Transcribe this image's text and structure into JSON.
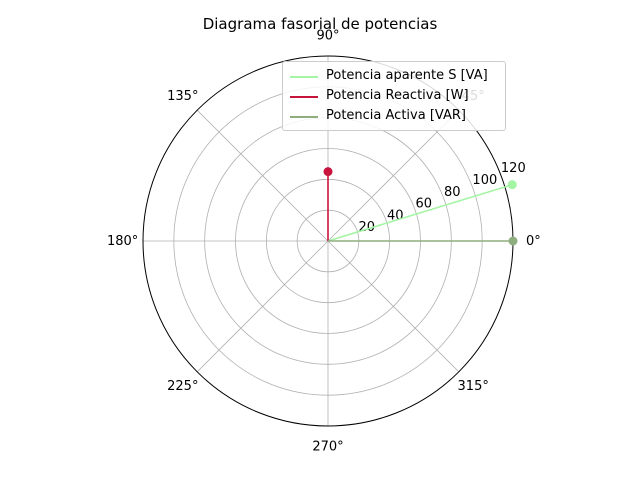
{
  "chart_data": {
    "type": "polar",
    "title": "Diagrama fasorial de potencias",
    "rlim": [
      0,
      120
    ],
    "r_ticks": [
      "20",
      "40",
      "60",
      "80",
      "100",
      "120"
    ],
    "theta_ticks": [
      "0°",
      "45°",
      "90°",
      "135°",
      "180°",
      "225°",
      "270°",
      "315°"
    ],
    "grid": true,
    "legend_position": "top-right",
    "series": [
      {
        "name": "Potencia aparente S [VA]",
        "color": "#a3f5a3",
        "theta_deg": 17,
        "r": 125
      },
      {
        "name": "Potencia Reactiva [W]",
        "color": "#c8143c",
        "theta_deg": 90,
        "r": 45
      },
      {
        "name": "Potencia Activa [VAR]",
        "color": "#8fae7f",
        "theta_deg": 0,
        "r": 120
      }
    ]
  }
}
